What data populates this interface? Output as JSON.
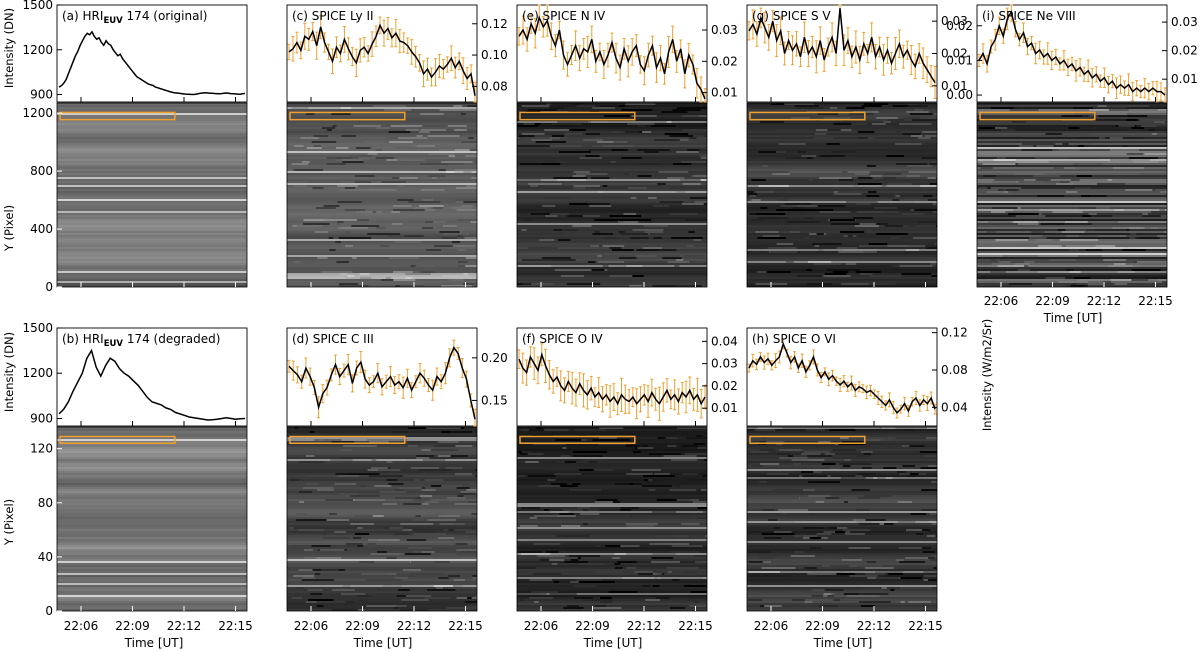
{
  "figure": {
    "shared_x_ticks": [
      "22:06",
      "22:09",
      "22:12",
      "22:15"
    ],
    "time_label": "Time [UT]",
    "intensity_dn_label": "Intensity (DN)",
    "intensity_phys_label": "Intensity (W/m2/Sr)",
    "ypixel_label": "Y (Pixel)",
    "highlight_color": "#f0a030",
    "errorbar_color": "#f0a030"
  },
  "chart_data": [
    {
      "id": "a",
      "type": "line",
      "title": "(a) HRI",
      "title_sub": "EUV",
      "title_rest": " 174 (original)",
      "ylim": [
        850,
        1500
      ],
      "yticks": [
        "900",
        "1200",
        "1500"
      ],
      "ytick_values": [
        900,
        1200,
        1500
      ],
      "xlim": [
        0,
        1
      ],
      "errorbars": false,
      "values": [
        950,
        960,
        975,
        1000,
        1040,
        1080,
        1120,
        1160,
        1190,
        1230,
        1260,
        1290,
        1310,
        1300,
        1320,
        1290,
        1270,
        1280,
        1250,
        1230,
        1260,
        1240,
        1230,
        1200,
        1180,
        1160,
        1170,
        1140,
        1120,
        1100,
        1080,
        1060,
        1040,
        1020,
        1010,
        1000,
        990,
        980,
        970,
        965,
        960,
        950,
        945,
        940,
        935,
        930,
        925,
        920,
        915,
        912,
        910,
        908,
        906,
        904,
        903,
        902,
        901,
        900,
        902,
        905,
        908,
        910,
        912,
        911,
        909,
        908,
        907,
        906,
        905,
        906,
        908,
        910,
        908,
        906,
        905,
        904,
        903,
        902,
        905,
        908
      ]
    },
    {
      "id": "b",
      "type": "line",
      "title": "(b) HRI",
      "title_sub": "EUV",
      "title_rest": " 174 (degraded)",
      "ylim": [
        850,
        1500
      ],
      "yticks": [
        "900",
        "1200",
        "1500"
      ],
      "ytick_values": [
        900,
        1200,
        1500
      ],
      "xlim": [
        0,
        1
      ],
      "errorbars": false,
      "values": [
        930,
        960,
        1010,
        1080,
        1140,
        1200,
        1300,
        1350,
        1240,
        1180,
        1250,
        1300,
        1280,
        1230,
        1200,
        1180,
        1150,
        1120,
        1080,
        1040,
        1010,
        1000,
        990,
        970,
        960,
        940,
        930,
        920,
        910,
        905,
        900,
        895,
        890,
        892,
        895,
        900,
        905,
        900,
        895,
        898,
        900
      ]
    },
    {
      "id": "c",
      "type": "line",
      "title": "(c) SPICE Ly II",
      "ylim": [
        0.07,
        0.132
      ],
      "yticks": [
        "0.08",
        "0.10",
        "0.12"
      ],
      "ytick_values": [
        0.08,
        0.1,
        0.12
      ],
      "xlim": [
        0,
        1
      ],
      "errorbars": true,
      "err": 0.007,
      "values": [
        0.102,
        0.104,
        0.108,
        0.103,
        0.112,
        0.11,
        0.115,
        0.106,
        0.118,
        0.108,
        0.102,
        0.096,
        0.105,
        0.101,
        0.11,
        0.104,
        0.099,
        0.095,
        0.103,
        0.105,
        0.101,
        0.107,
        0.112,
        0.119,
        0.114,
        0.117,
        0.111,
        0.114,
        0.109,
        0.108,
        0.106,
        0.102,
        0.099,
        0.095,
        0.088,
        0.091,
        0.086,
        0.089,
        0.093,
        0.091,
        0.094,
        0.098,
        0.092,
        0.096,
        0.09,
        0.085,
        0.088,
        0.074
      ]
    },
    {
      "id": "d",
      "type": "line",
      "title": "(d) SPICE C III",
      "ylim": [
        0.12,
        0.235
      ],
      "yticks": [
        "0.15",
        "0.20"
      ],
      "ytick_values": [
        0.15,
        0.2
      ],
      "xlim": [
        0,
        1
      ],
      "errorbars": true,
      "err": 0.01,
      "values": [
        0.19,
        0.185,
        0.18,
        0.172,
        0.188,
        0.178,
        0.165,
        0.142,
        0.158,
        0.165,
        0.18,
        0.192,
        0.178,
        0.185,
        0.192,
        0.17,
        0.188,
        0.195,
        0.175,
        0.168,
        0.172,
        0.182,
        0.166,
        0.172,
        0.178,
        0.168,
        0.172,
        0.165,
        0.176,
        0.162,
        0.172,
        0.182,
        0.176,
        0.168,
        0.162,
        0.178,
        0.172,
        0.182,
        0.2,
        0.212,
        0.205,
        0.188,
        0.175,
        0.15,
        0.128
      ]
    },
    {
      "id": "e",
      "type": "line",
      "title": "(e) SPICE N IV",
      "ylim": [
        0.007,
        0.038
      ],
      "yticks": [
        "0.01",
        "0.02",
        "0.03"
      ],
      "ytick_values": [
        0.01,
        0.02,
        0.03
      ],
      "xlim": [
        0,
        1
      ],
      "errorbars": true,
      "err": 0.004,
      "values": [
        0.028,
        0.03,
        0.027,
        0.032,
        0.029,
        0.034,
        0.031,
        0.033,
        0.028,
        0.025,
        0.03,
        0.022,
        0.019,
        0.022,
        0.025,
        0.021,
        0.024,
        0.023,
        0.027,
        0.02,
        0.023,
        0.019,
        0.022,
        0.026,
        0.021,
        0.018,
        0.024,
        0.02,
        0.023,
        0.025,
        0.019,
        0.017,
        0.022,
        0.025,
        0.018,
        0.021,
        0.016,
        0.023,
        0.027,
        0.02,
        0.024,
        0.016,
        0.022,
        0.019,
        0.013,
        0.011,
        0.008
      ]
    },
    {
      "id": "f",
      "type": "line",
      "title": "(f) SPICE O IV",
      "ylim": [
        0.002,
        0.046
      ],
      "yticks": [
        "0.01",
        "0.02",
        "0.03",
        "0.04"
      ],
      "ytick_values": [
        0.01,
        0.02,
        0.03,
        0.04
      ],
      "xlim": [
        0,
        1
      ],
      "errorbars": true,
      "err": 0.006,
      "values": [
        0.032,
        0.028,
        0.026,
        0.033,
        0.03,
        0.027,
        0.034,
        0.029,
        0.025,
        0.022,
        0.024,
        0.02,
        0.018,
        0.022,
        0.019,
        0.017,
        0.021,
        0.018,
        0.016,
        0.019,
        0.015,
        0.017,
        0.014,
        0.016,
        0.013,
        0.015,
        0.012,
        0.016,
        0.014,
        0.013,
        0.015,
        0.012,
        0.014,
        0.016,
        0.013,
        0.017,
        0.014,
        0.012,
        0.015,
        0.018,
        0.014,
        0.016,
        0.013,
        0.017,
        0.015,
        0.018,
        0.014,
        0.016,
        0.012,
        0.015
      ]
    },
    {
      "id": "g",
      "type": "line",
      "title": "(g) SPICE S V",
      "ylim": [
        0.005,
        0.035
      ],
      "yticks": [
        "0.01",
        "0.02",
        "0.03"
      ],
      "ytick_values": [
        0.01,
        0.02,
        0.03
      ],
      "xlim": [
        0,
        1
      ],
      "errorbars": true,
      "err": 0.004,
      "values": [
        0.027,
        0.029,
        0.026,
        0.031,
        0.028,
        0.025,
        0.03,
        0.024,
        0.027,
        0.02,
        0.024,
        0.021,
        0.023,
        0.019,
        0.025,
        0.02,
        0.022,
        0.019,
        0.024,
        0.018,
        0.022,
        0.025,
        0.02,
        0.034,
        0.021,
        0.024,
        0.019,
        0.022,
        0.018,
        0.023,
        0.02,
        0.025,
        0.019,
        0.022,
        0.018,
        0.021,
        0.017,
        0.02,
        0.023,
        0.019,
        0.021,
        0.018,
        0.016,
        0.02,
        0.017,
        0.015,
        0.013,
        0.011
      ]
    },
    {
      "id": "h",
      "type": "line",
      "title": "(h) SPICE O VI",
      "ylim": [
        0.02,
        0.125
      ],
      "yticks": [
        "0.04",
        "0.08",
        "0.12"
      ],
      "ytick_values": [
        0.04,
        0.08,
        0.12
      ],
      "xlim": [
        0,
        1
      ],
      "errorbars": true,
      "err": 0.006,
      "values": [
        0.082,
        0.09,
        0.086,
        0.094,
        0.088,
        0.092,
        0.085,
        0.09,
        0.094,
        0.108,
        0.098,
        0.088,
        0.094,
        0.082,
        0.09,
        0.078,
        0.085,
        0.094,
        0.08,
        0.072,
        0.078,
        0.07,
        0.074,
        0.068,
        0.064,
        0.068,
        0.062,
        0.066,
        0.058,
        0.062,
        0.06,
        0.056,
        0.058,
        0.054,
        0.05,
        0.046,
        0.042,
        0.048,
        0.04,
        0.034,
        0.038,
        0.044,
        0.036,
        0.046,
        0.05,
        0.042,
        0.048,
        0.044,
        0.05,
        0.038
      ]
    },
    {
      "id": "i",
      "type": "line",
      "title": "(i) SPICE Ne VIII",
      "ylim": [
        -0.002,
        0.026
      ],
      "yticks": [
        "0.00",
        "0.01",
        "0.02"
      ],
      "ytick_values": [
        0.0,
        0.01,
        0.02
      ],
      "right_yticks": [
        "0.01",
        "0.02",
        "0.03"
      ],
      "right_ytick_values": [
        0.01,
        0.02,
        0.03
      ],
      "right_ylim": [
        0.002,
        0.036
      ],
      "xlim": [
        0,
        1
      ],
      "errorbars": true,
      "err": 0.0025,
      "values": [
        0.01,
        0.012,
        0.009,
        0.014,
        0.016,
        0.02,
        0.017,
        0.022,
        0.024,
        0.019,
        0.016,
        0.018,
        0.014,
        0.015,
        0.012,
        0.013,
        0.011,
        0.012,
        0.01,
        0.011,
        0.009,
        0.01,
        0.008,
        0.009,
        0.007,
        0.008,
        0.006,
        0.007,
        0.005,
        0.006,
        0.004,
        0.005,
        0.003,
        0.004,
        0.002,
        0.003,
        0.002,
        0.003,
        0.001,
        0.002,
        0.001,
        0.002,
        0.001,
        0.002,
        0.001,
        0.001,
        0.0
      ]
    }
  ],
  "images": [
    {
      "id": "a",
      "yticks": [
        "0",
        "400",
        "800",
        "1200"
      ],
      "ytick_values": [
        0,
        400,
        800,
        1200
      ],
      "ylim": [
        0,
        1270
      ],
      "seed": 11,
      "contrast": "smooth",
      "highlight_y": [
        1155,
        1205
      ],
      "highlight_x": [
        0.0,
        0.62
      ]
    },
    {
      "id": "b",
      "yticks": [
        "0",
        "40",
        "80",
        "120"
      ],
      "ytick_values": [
        0,
        40,
        80,
        120
      ],
      "ylim": [
        0,
        136
      ],
      "seed": 12,
      "contrast": "smooth",
      "highlight_y": [
        124,
        129
      ],
      "highlight_x": [
        0.0,
        0.62
      ]
    },
    {
      "id": "c",
      "ylim": [
        0,
        1270
      ],
      "seed": 21,
      "contrast": "low",
      "highlight_y": [
        1155,
        1205
      ],
      "highlight_x": [
        0.0,
        0.62
      ]
    },
    {
      "id": "d",
      "ylim": [
        0,
        136
      ],
      "seed": 22,
      "contrast": "med",
      "highlight_y": [
        124,
        129
      ],
      "highlight_x": [
        0.0,
        0.62
      ]
    },
    {
      "id": "e",
      "ylim": [
        0,
        1270
      ],
      "seed": 31,
      "contrast": "high",
      "highlight_y": [
        1155,
        1205
      ],
      "highlight_x": [
        0.0,
        0.62
      ]
    },
    {
      "id": "f",
      "ylim": [
        0,
        136
      ],
      "seed": 32,
      "contrast": "high",
      "highlight_y": [
        124,
        129
      ],
      "highlight_x": [
        0.0,
        0.62
      ]
    },
    {
      "id": "g",
      "ylim": [
        0,
        1270
      ],
      "seed": 41,
      "contrast": "high",
      "highlight_y": [
        1155,
        1205
      ],
      "highlight_x": [
        0.0,
        0.62
      ]
    },
    {
      "id": "h",
      "ylim": [
        0,
        136
      ],
      "seed": 42,
      "contrast": "high",
      "highlight_y": [
        124,
        129
      ],
      "highlight_x": [
        0.0,
        0.62
      ]
    },
    {
      "id": "i",
      "ylim": [
        0,
        1270
      ],
      "seed": 51,
      "contrast": "noise",
      "highlight_y": [
        1155,
        1205
      ],
      "highlight_x": [
        0.0,
        0.62
      ]
    }
  ]
}
